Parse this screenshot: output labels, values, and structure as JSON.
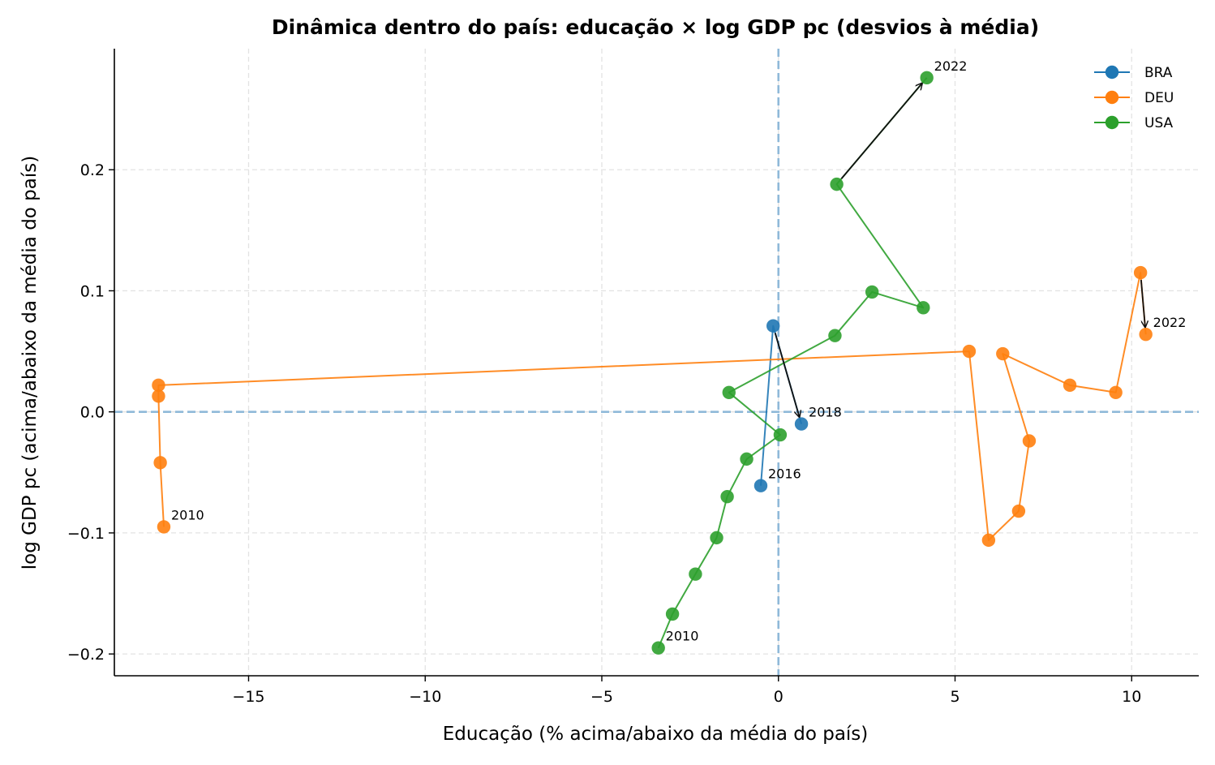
{
  "chart_data": {
    "type": "line",
    "title": "Dinâmica dentro do país: educação × log GDP pc (desvios à média)",
    "xlabel": "Educação (% acima/abaixo da média do país)",
    "ylabel": "log GDP pc (acima/abaixo da média do país)",
    "xlim": [
      -18.8,
      11.9
    ],
    "ylim": [
      -0.218,
      0.3
    ],
    "x_ticks": [
      -15,
      -10,
      -5,
      0,
      5,
      10
    ],
    "x_tick_labels": [
      "−15",
      "−10",
      "−5",
      "0",
      "5",
      "10"
    ],
    "y_ticks": [
      -0.2,
      -0.1,
      0.0,
      0.1,
      0.2
    ],
    "y_tick_labels": [
      "−0.2",
      "−0.1",
      "0.0",
      "0.1",
      "0.2"
    ],
    "grid": true,
    "reference_lines": {
      "x": 0,
      "y": 0,
      "color": "#8fb9d9",
      "style": "dashed"
    },
    "legend_position": "top-right",
    "series": [
      {
        "name": "BRA",
        "color": "#1f77b4",
        "points": [
          {
            "x": -0.5,
            "y": -0.061
          },
          {
            "x": -0.15,
            "y": 0.071
          },
          {
            "x": 0.65,
            "y": -0.01
          }
        ],
        "annotations": [
          {
            "text": "2016",
            "x": -0.5,
            "y": -0.061
          },
          {
            "text": "2018",
            "x": 0.65,
            "y": -0.01
          }
        ]
      },
      {
        "name": "DEU",
        "color": "#ff7f0e",
        "points": [
          {
            "x": -17.4,
            "y": -0.095
          },
          {
            "x": -17.5,
            "y": -0.042
          },
          {
            "x": -17.55,
            "y": 0.013
          },
          {
            "x": -17.55,
            "y": 0.022
          },
          {
            "x": 5.4,
            "y": 0.05
          },
          {
            "x": 5.95,
            "y": -0.106
          },
          {
            "x": 6.8,
            "y": -0.082
          },
          {
            "x": 7.1,
            "y": -0.024
          },
          {
            "x": 6.35,
            "y": 0.048
          },
          {
            "x": 8.25,
            "y": 0.022
          },
          {
            "x": 9.55,
            "y": 0.016
          },
          {
            "x": 10.25,
            "y": 0.115
          },
          {
            "x": 10.4,
            "y": 0.064
          }
        ],
        "annotations": [
          {
            "text": "2010",
            "x": -17.4,
            "y": -0.095
          },
          {
            "text": "2022",
            "x": 10.4,
            "y": 0.064
          }
        ]
      },
      {
        "name": "USA",
        "color": "#2ca02c",
        "points": [
          {
            "x": -3.4,
            "y": -0.195
          },
          {
            "x": -3.0,
            "y": -0.167
          },
          {
            "x": -2.35,
            "y": -0.134
          },
          {
            "x": -1.75,
            "y": -0.104
          },
          {
            "x": -1.45,
            "y": -0.07
          },
          {
            "x": -0.9,
            "y": -0.039
          },
          {
            "x": 0.05,
            "y": -0.019
          },
          {
            "x": -1.4,
            "y": 0.016
          },
          {
            "x": 1.6,
            "y": 0.063
          },
          {
            "x": 2.65,
            "y": 0.099
          },
          {
            "x": 4.1,
            "y": 0.086
          },
          {
            "x": 1.65,
            "y": 0.188
          },
          {
            "x": 4.2,
            "y": 0.276
          }
        ],
        "annotations": [
          {
            "text": "2010",
            "x": -3.4,
            "y": -0.195
          },
          {
            "text": "2022",
            "x": 4.2,
            "y": 0.276
          }
        ]
      }
    ]
  }
}
